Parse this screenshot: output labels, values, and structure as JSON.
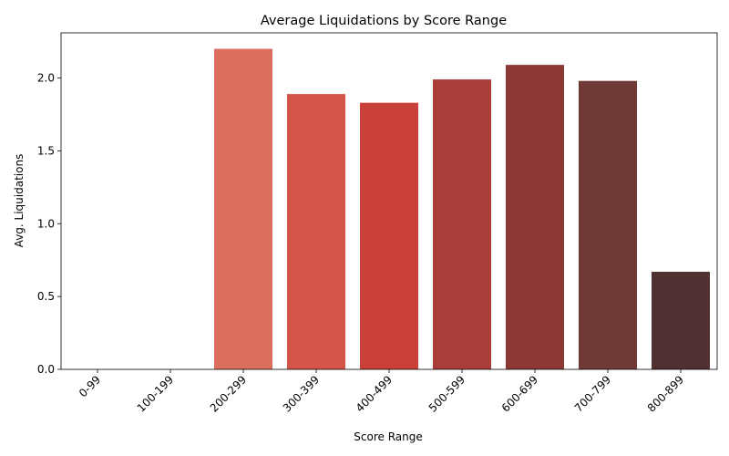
{
  "chart_data": {
    "type": "bar",
    "title": "Average Liquidations by Score Range",
    "xlabel": "Score Range",
    "ylabel": "Avg. Liquidations",
    "categories": [
      "0-99",
      "100-199",
      "200-299",
      "300-399",
      "400-499",
      "500-599",
      "600-699",
      "700-799",
      "800-899"
    ],
    "values": [
      0,
      0,
      2.2,
      1.89,
      1.83,
      1.99,
      2.09,
      1.98,
      0.67
    ],
    "colors": [
      "#e88d7e",
      "#e57a69",
      "#dc6e5f",
      "#d4544a",
      "#c9413a",
      "#a93d38",
      "#8c3936",
      "#713935",
      "#503030"
    ],
    "ylim": [
      0,
      2.31
    ],
    "yticks": [
      0.0,
      0.5,
      1.0,
      1.5,
      2.0
    ],
    "ytick_labels": [
      "0.0",
      "0.5",
      "1.0",
      "1.5",
      "2.0"
    ],
    "xtick_rotation": 45,
    "grid": false,
    "legend": "none"
  }
}
